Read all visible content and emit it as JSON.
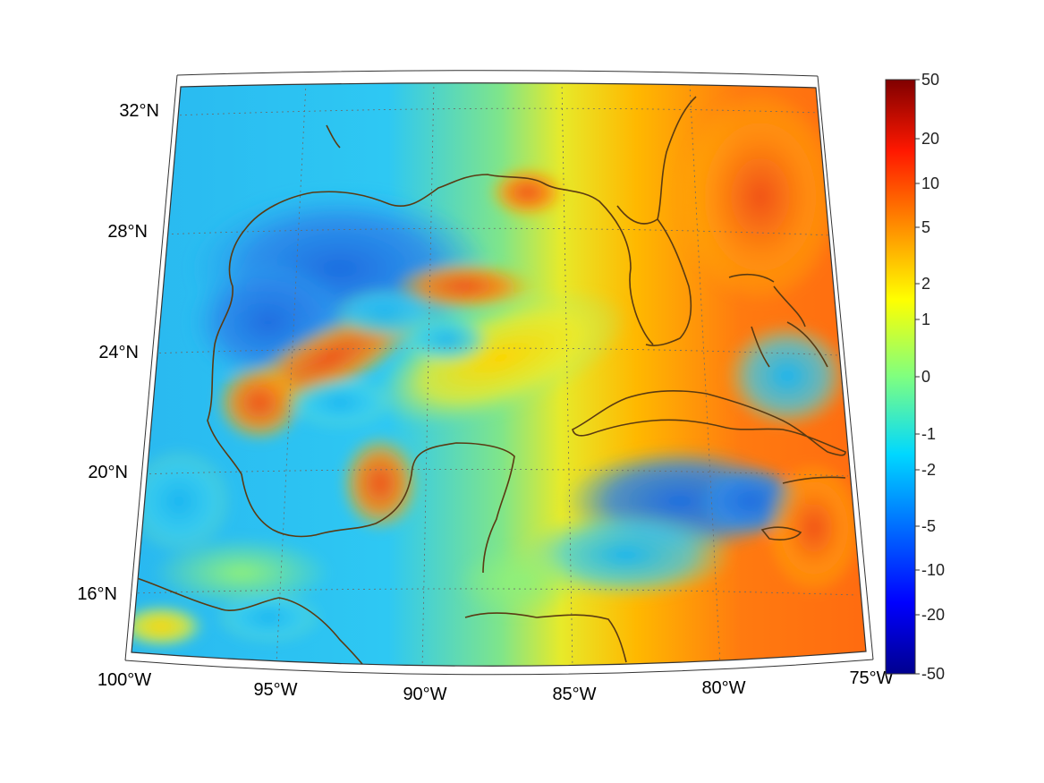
{
  "map": {
    "projection": "conic",
    "longitude_range": [
      "100°W",
      "75°W"
    ],
    "latitude_range": [
      "14°N",
      "33°N"
    ],
    "colormap": "jet",
    "coastline_color": "#5a3a12",
    "gridlines": "dotted"
  },
  "axes": {
    "lat_labels": [
      "32°N",
      "28°N",
      "24°N",
      "20°N",
      "16°N"
    ],
    "lon_labels": [
      "100°W",
      "95°W",
      "90°W",
      "85°W",
      "80°W",
      "75°W"
    ]
  },
  "colorbar": {
    "tick_labels": [
      "50",
      "20",
      "10",
      "5",
      "2",
      "1",
      "0",
      "-1",
      "-2",
      "-5",
      "-10",
      "-20",
      "-50"
    ]
  },
  "features": [
    {
      "label": "",
      "kind": "warm-anomaly",
      "region": "central Gulf band"
    },
    {
      "label": "",
      "kind": "warm-anomaly",
      "region": "Bay of Campeche"
    },
    {
      "label": "",
      "kind": "warm-anomaly",
      "region": "Atlantic east of Florida"
    },
    {
      "label": "",
      "kind": "cold-anomaly",
      "region": "northwestern Gulf shelf"
    },
    {
      "label": "",
      "kind": "cold-anomaly",
      "region": "western Caribbean south of Cuba"
    }
  ]
}
